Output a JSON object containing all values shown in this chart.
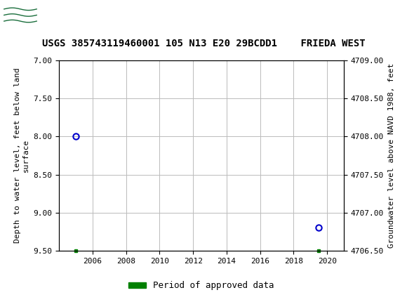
{
  "title": "USGS 385743119460001 105 N13 E20 29BCDD1    FRIEDA WEST",
  "ylabel_left": "Depth to water level, feet below land\nsurface",
  "ylabel_right": "Groundwater level above NAVD 1988, feet",
  "xlim_years": [
    2004,
    2021
  ],
  "ylim_left_top": 7.0,
  "ylim_left_bottom": 9.5,
  "ylim_right_top": 4709.0,
  "ylim_right_bottom": 4706.5,
  "yticks_left": [
    7.0,
    7.5,
    8.0,
    8.5,
    9.0,
    9.5
  ],
  "yticks_right": [
    4709.0,
    4708.5,
    4708.0,
    4707.5,
    4707.0,
    4706.5
  ],
  "ytick_right_labels": [
    "4709.00",
    "4708.50",
    "4708.00",
    "4707.50",
    "4707.00",
    "4706.50"
  ],
  "xticks": [
    2006,
    2008,
    2010,
    2012,
    2014,
    2016,
    2018,
    2020
  ],
  "data_points": [
    {
      "year": 2005.0,
      "depth": 8.0
    },
    {
      "year": 2019.5,
      "depth": 9.2
    }
  ],
  "green_marks": [
    {
      "year": 2005.0
    },
    {
      "year": 2019.5
    }
  ],
  "legend_label": "Period of approved data",
  "legend_color": "#008000",
  "header_bg": "#1a6e3c",
  "header_text_color": "#ffffff",
  "point_color": "#0000cc",
  "background_color": "#ffffff",
  "grid_color": "#bbbbbb",
  "font_family": "monospace",
  "title_fontsize": 10,
  "tick_fontsize": 8,
  "label_fontsize": 8
}
